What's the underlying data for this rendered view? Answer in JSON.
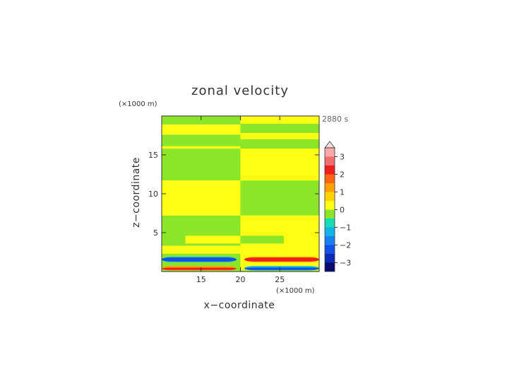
{
  "chart_data": {
    "type": "heatmap",
    "title": "zonal velocity",
    "xlabel": "x−coordinate",
    "ylabel": "z−coordinate",
    "x_unit": "(×1000 m)",
    "y_unit": "(×1000 m)",
    "time_label": "2880 s",
    "xlim": [
      10,
      30
    ],
    "ylim": [
      0,
      20
    ],
    "x_ticks": [
      15,
      20,
      25
    ],
    "y_ticks": [
      5,
      10,
      15
    ],
    "colorbar": {
      "tick_values": [
        3,
        2,
        1,
        0,
        -1,
        -2,
        -3
      ],
      "tick_labels": [
        "3",
        "2",
        "1",
        "0",
        "−1",
        "−2",
        "−3"
      ],
      "min": -3.5,
      "max": 3.5,
      "extend": "max",
      "levels": [
        {
          "from": -3.5,
          "to": -3.0,
          "color": "#0a0a6e"
        },
        {
          "from": -3.0,
          "to": -2.5,
          "color": "#0d2ab4"
        },
        {
          "from": -2.5,
          "to": -2.0,
          "color": "#1250e6"
        },
        {
          "from": -2.0,
          "to": -1.5,
          "color": "#1a80f0"
        },
        {
          "from": -1.5,
          "to": -1.0,
          "color": "#10b4e6"
        },
        {
          "from": -1.0,
          "to": -0.5,
          "color": "#14dcb4"
        },
        {
          "from": -0.5,
          "to": 0.0,
          "color": "#8ce628"
        },
        {
          "from": 0.0,
          "to": 0.5,
          "color": "#ffff14"
        },
        {
          "from": 0.5,
          "to": 1.0,
          "color": "#ffd200"
        },
        {
          "from": 1.0,
          "to": 1.5,
          "color": "#ffa000"
        },
        {
          "from": 1.5,
          "to": 2.0,
          "color": "#ff6414"
        },
        {
          "from": 2.0,
          "to": 2.5,
          "color": "#f01e1e"
        },
        {
          "from": 2.5,
          "to": 3.0,
          "color": "#f06e6e"
        },
        {
          "from": 3.0,
          "to": 3.5,
          "color": "#f8aaaa"
        }
      ],
      "over_color": "#fcdcdc"
    },
    "regions": [
      {
        "x": [
          10,
          20
        ],
        "z": [
          0,
          0.15
        ],
        "value": -0.2
      },
      {
        "x": [
          20,
          30
        ],
        "z": [
          0,
          0.15
        ],
        "value": -0.2
      },
      {
        "x": [
          20,
          30
        ],
        "z": [
          0.15,
          20
        ],
        "value": 0.3
      },
      {
        "x": [
          10,
          20
        ],
        "z": [
          18.9,
          20
        ],
        "value": -0.2
      },
      {
        "x": [
          10,
          20
        ],
        "z": [
          17.6,
          18.9
        ],
        "value": 0.3
      },
      {
        "x": [
          10,
          20
        ],
        "z": [
          16.1,
          17.6
        ],
        "value": -0.2
      },
      {
        "x": [
          10,
          20
        ],
        "z": [
          15.8,
          16.1
        ],
        "value": 0.3
      },
      {
        "x": [
          10,
          20
        ],
        "z": [
          11.7,
          15.8
        ],
        "value": -0.2
      },
      {
        "x": [
          10,
          20
        ],
        "z": [
          7.2,
          11.7
        ],
        "value": 0.3
      },
      {
        "x": [
          10,
          20
        ],
        "z": [
          3.3,
          7.2
        ],
        "value": -0.2
      },
      {
        "x": [
          10,
          20
        ],
        "z": [
          2.3,
          3.3
        ],
        "value": 0.3
      },
      {
        "x": [
          10,
          20
        ],
        "z": [
          0.15,
          2.3
        ],
        "value": -0.2
      },
      {
        "x": [
          20,
          30
        ],
        "z": [
          17.8,
          19.0
        ],
        "value": -0.2
      },
      {
        "x": [
          20,
          30
        ],
        "z": [
          15.8,
          17.0
        ],
        "value": -0.2
      },
      {
        "x": [
          20,
          30
        ],
        "z": [
          11.7,
          15.7
        ],
        "value": 0.2
      },
      {
        "x": [
          20,
          30
        ],
        "z": [
          7.2,
          11.7
        ],
        "value": -0.2
      },
      {
        "x": [
          20,
          30
        ],
        "z": [
          3.3,
          7.2
        ],
        "value": 0.3
      },
      {
        "x": [
          20,
          30
        ],
        "z": [
          0.15,
          3.3
        ],
        "value": 0.3
      },
      {
        "x": [
          13,
          20
        ],
        "z": [
          3.6,
          4.6
        ],
        "value": 0.3
      },
      {
        "x": [
          20,
          25.5
        ],
        "z": [
          3.6,
          4.6
        ],
        "value": -0.2
      }
    ],
    "lower_jets": [
      {
        "x": [
          10,
          19.5
        ],
        "z": [
          1.2,
          1.9
        ],
        "value": -1.3
      },
      {
        "x": [
          10,
          19.5
        ],
        "z": [
          1.3,
          1.8
        ],
        "value": -2.3
      },
      {
        "x": [
          20.5,
          30
        ],
        "z": [
          1.2,
          1.9
        ],
        "value": 1.3
      },
      {
        "x": [
          20.5,
          30
        ],
        "z": [
          1.3,
          1.8
        ],
        "value": 2.3
      },
      {
        "x": [
          10,
          19.5
        ],
        "z": [
          0.15,
          0.7
        ],
        "value": 1.3
      },
      {
        "x": [
          10,
          19.5
        ],
        "z": [
          0.2,
          0.5
        ],
        "value": 2.3
      },
      {
        "x": [
          20.5,
          30
        ],
        "z": [
          0.15,
          0.7
        ],
        "value": -1.3
      },
      {
        "x": [
          20.5,
          30
        ],
        "z": [
          0.2,
          0.5
        ],
        "value": -2.3
      }
    ]
  }
}
